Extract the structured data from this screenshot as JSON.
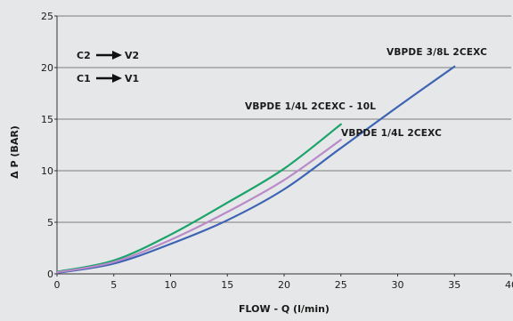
{
  "chart_data": {
    "type": "line",
    "xlabel": "FLOW - Q (l/min)",
    "ylabel": "Δ P (BAR)",
    "xlim": [
      0,
      40
    ],
    "ylim": [
      0,
      25
    ],
    "x_ticks": [
      "0",
      "5",
      "10",
      "15",
      "20",
      "25",
      "30",
      "35",
      "40"
    ],
    "y_ticks": [
      "0",
      "5",
      "10",
      "15",
      "20",
      "25"
    ],
    "grid": "horizontal",
    "annotations": [
      {
        "from": "C2",
        "to": "V2"
      },
      {
        "from": "C1",
        "to": "V1"
      }
    ],
    "series": [
      {
        "name": "VBPDE 3/8L 2CEXC",
        "color": "#3d63b4",
        "x": [
          0,
          5,
          10,
          15,
          20,
          25,
          30,
          35
        ],
        "y": [
          0.1,
          1.0,
          2.9,
          5.2,
          8.2,
          12.2,
          16.2,
          20.1
        ]
      },
      {
        "name": "VBPDE 1/4L 2CEXC - 10L",
        "color": "#1aa36a",
        "x": [
          0,
          5,
          10,
          15,
          20,
          25
        ],
        "y": [
          0.2,
          1.3,
          3.8,
          6.9,
          10.2,
          14.5
        ]
      },
      {
        "name": "VBPDE 1/4L 2CEXC",
        "color": "#b98ac8",
        "x": [
          0,
          5,
          10,
          15,
          20,
          25
        ],
        "y": [
          0.15,
          1.15,
          3.3,
          6.0,
          9.1,
          13.0
        ]
      }
    ]
  }
}
